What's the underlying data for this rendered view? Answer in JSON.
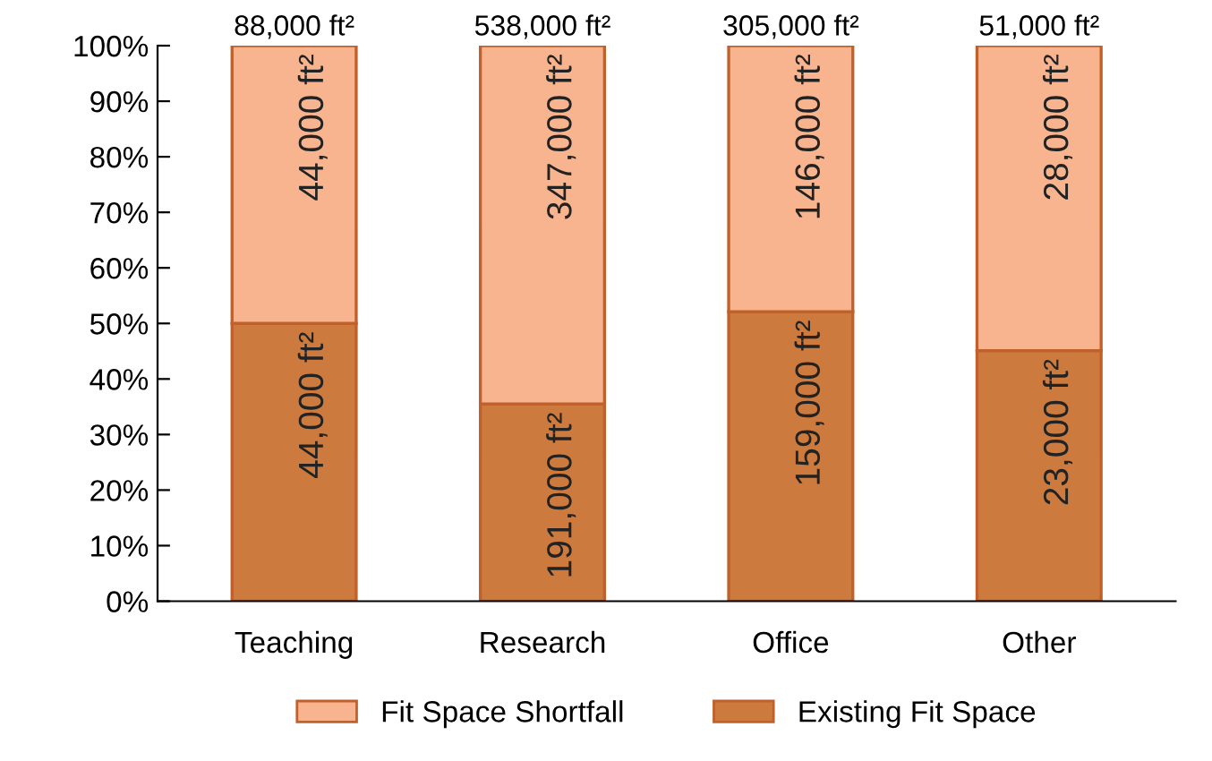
{
  "chart_data": {
    "type": "bar",
    "stacked": true,
    "categories": [
      "Teaching",
      "Research",
      "Office",
      "Other"
    ],
    "series": [
      {
        "name": "Existing Fit Space",
        "color": "#cc7a3e",
        "values": [
          50,
          35.5,
          52.1,
          45.1
        ]
      },
      {
        "name": "Fit Space Shortfall",
        "color": "#f8b48e",
        "values": [
          50,
          64.5,
          47.9,
          54.9
        ]
      }
    ],
    "annotations": [
      {
        "text": "44,000 ft²",
        "x": "Teaching",
        "y": 50
      },
      {
        "text": "191,000 ft²",
        "x": "Research",
        "y": 35.5
      },
      {
        "text": "159,000 ft²",
        "x": "Office",
        "y": 52.1
      },
      {
        "text": "23,000 ft²",
        "x": "Other",
        "y": 45.1
      },
      {
        "text": "44,000 ft²",
        "x": "Teaching",
        "y": 100
      },
      {
        "text": "347,000 ft²",
        "x": "Research",
        "y": 100
      },
      {
        "text": "146,000 ft²",
        "x": "Office",
        "y": 100
      },
      {
        "text": "28,000 ft²",
        "x": "Other",
        "y": 100
      },
      {
        "text": "88,000 ft²",
        "x": "Teaching",
        "y": 100
      },
      {
        "text": "538,000 ft²",
        "x": "Research",
        "y": 100
      },
      {
        "text": "305,000 ft²",
        "x": "Office",
        "y": 100
      },
      {
        "text": "51,000 ft²",
        "x": "Other",
        "y": 100
      }
    ],
    "ylim": [
      0,
      100
    ],
    "yticks": [
      {
        "value": 0,
        "label": "0%"
      },
      {
        "value": 10,
        "label": "10%"
      },
      {
        "value": 20,
        "label": "20%"
      },
      {
        "value": 30,
        "label": "30%"
      },
      {
        "value": 40,
        "label": "40%"
      },
      {
        "value": 50,
        "label": "50%"
      },
      {
        "value": 60,
        "label": "60%"
      },
      {
        "value": 70,
        "label": "70%"
      },
      {
        "value": 80,
        "label": "80%"
      },
      {
        "value": 90,
        "label": "90%"
      },
      {
        "value": 100,
        "label": "100%"
      }
    ],
    "grid": false,
    "legend": "bottom"
  }
}
